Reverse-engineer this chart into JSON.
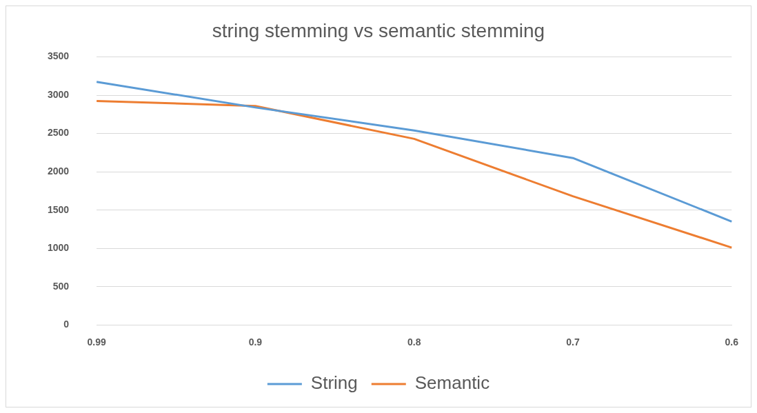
{
  "chart_data": {
    "type": "line",
    "title": "string stemming vs semantic stemming",
    "categories": [
      "0.99",
      "0.9",
      "0.8",
      "0.7",
      "0.6"
    ],
    "series": [
      {
        "name": "String",
        "color": "#5b9bd5",
        "values": [
          3175,
          2840,
          2540,
          2180,
          1350
        ]
      },
      {
        "name": "Semantic",
        "color": "#ed7d31",
        "values": [
          2925,
          2860,
          2430,
          1680,
          1010
        ]
      }
    ],
    "ylim": [
      0,
      3500
    ],
    "yticks": [
      0,
      500,
      1000,
      1500,
      2000,
      2500,
      3000,
      3500
    ],
    "grid": "y",
    "legend": "bottom",
    "marker": "none",
    "line_style": "solid"
  }
}
